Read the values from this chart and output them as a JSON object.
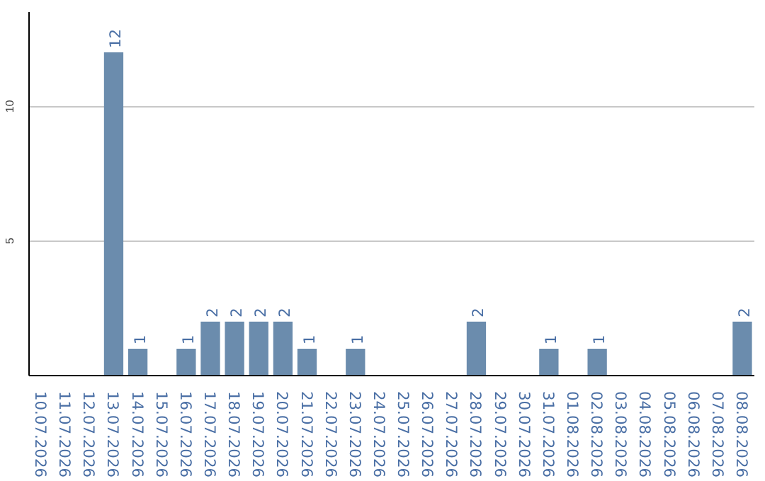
{
  "chart_data": {
    "type": "bar",
    "categories": [
      "10.07.2026",
      "11.07.2026",
      "12.07.2026",
      "13.07.2026",
      "14.07.2026",
      "15.07.2026",
      "16.07.2026",
      "17.07.2026",
      "18.07.2026",
      "19.07.2026",
      "20.07.2026",
      "21.07.2026",
      "22.07.2026",
      "23.07.2026",
      "24.07.2026",
      "25.07.2026",
      "26.07.2026",
      "27.07.2026",
      "28.07.2026",
      "29.07.2026",
      "30.07.2026",
      "31.07.2026",
      "01.08.2026",
      "02.08.2026",
      "03.08.2026",
      "04.08.2026",
      "05.08.2026",
      "06.08.2026",
      "07.08.2026",
      "08.08.2026"
    ],
    "values": [
      0,
      0,
      0,
      12,
      1,
      0,
      1,
      2,
      2,
      2,
      2,
      1,
      0,
      1,
      0,
      0,
      0,
      0,
      2,
      0,
      0,
      1,
      0,
      1,
      0,
      0,
      0,
      0,
      0,
      2
    ],
    "value_labels": [
      null,
      null,
      null,
      "12",
      "1",
      null,
      "1",
      "2",
      "2",
      "2",
      "2",
      "1",
      null,
      "1",
      null,
      null,
      null,
      null,
      "2",
      null,
      null,
      "1",
      null,
      "1",
      null,
      null,
      null,
      null,
      null,
      "2"
    ],
    "color": "#6b8cad",
    "ylim": [
      0,
      13.5
    ],
    "yticks": [
      5,
      10
    ],
    "grid": "y"
  }
}
